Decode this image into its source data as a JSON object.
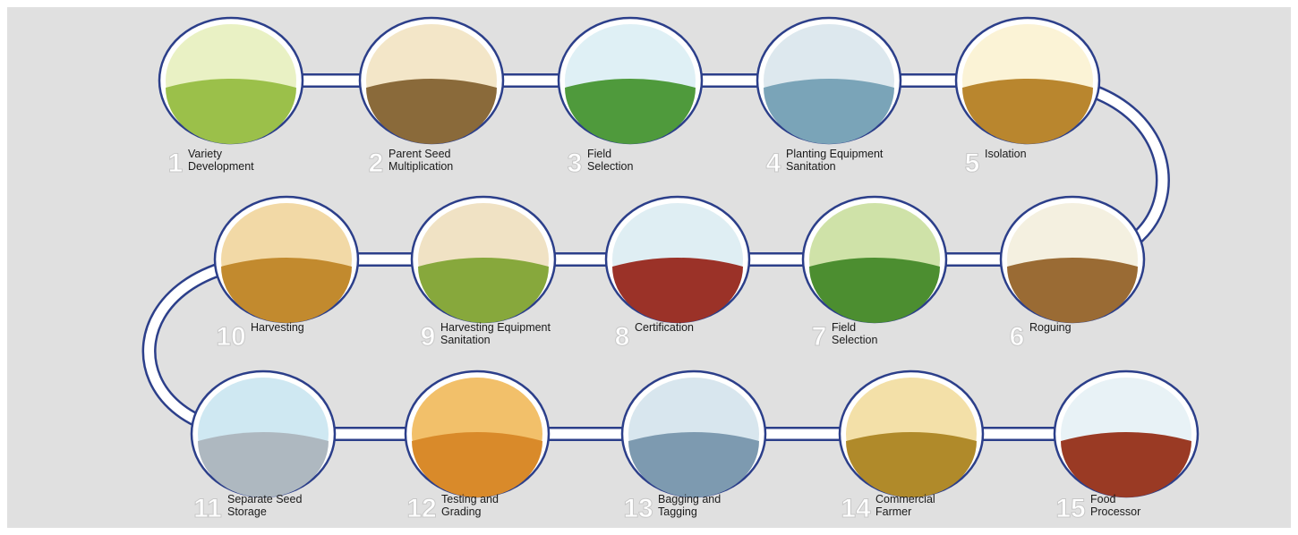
{
  "nodes": [
    {
      "number": 1,
      "label": [
        "Variety",
        "Development"
      ]
    },
    {
      "number": 2,
      "label": [
        "Parent Seed",
        "Multiplication"
      ]
    },
    {
      "number": 3,
      "label": [
        "Field",
        "Selection"
      ]
    },
    {
      "number": 4,
      "label": [
        "Planting Equipment",
        "Sanitation"
      ]
    },
    {
      "number": 5,
      "label": [
        "Isolation"
      ]
    },
    {
      "number": 6,
      "label": [
        "Roguing"
      ]
    },
    {
      "number": 7,
      "label": [
        "Field",
        "Selection"
      ]
    },
    {
      "number": 8,
      "label": [
        "Certification"
      ]
    },
    {
      "number": 9,
      "label": [
        "Harvesting Equipment",
        "Sanitation"
      ]
    },
    {
      "number": 10,
      "label": [
        "Harvesting"
      ]
    },
    {
      "number": 11,
      "label": [
        "Separate Seed",
        "Storage"
      ]
    },
    {
      "number": 12,
      "label": [
        "Testing and",
        "Grading"
      ]
    },
    {
      "number": 13,
      "label": [
        "Bagging and",
        "Tagging"
      ]
    },
    {
      "number": 14,
      "label": [
        "Commercial",
        "Farmer"
      ]
    },
    {
      "number": 15,
      "label": [
        "Food",
        "Processor"
      ]
    }
  ]
}
